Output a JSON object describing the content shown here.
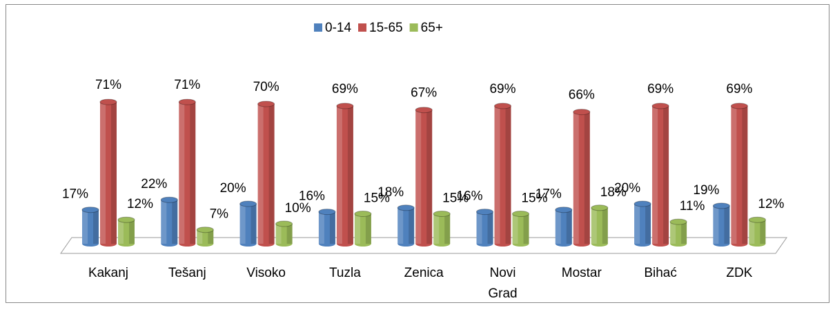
{
  "chart_data": {
    "type": "bar3d",
    "categories": [
      "Kakanj",
      "Tešanj",
      "Visoko",
      "Tuzla",
      "Zenica",
      "Novi Grad",
      "Mostar",
      "Bihać",
      "ZDK"
    ],
    "series": [
      {
        "name": "0-14",
        "color": "#4f81bd",
        "values": [
          17,
          22,
          20,
          16,
          18,
          16,
          17,
          20,
          19
        ],
        "value_labels": [
          "17%",
          "22%",
          "20%",
          "16%",
          "18%",
          "16%",
          "17%",
          "20%",
          "19%"
        ]
      },
      {
        "name": "15-65",
        "color": "#c0504d",
        "values": [
          71,
          71,
          70,
          69,
          67,
          69,
          66,
          69,
          69
        ],
        "value_labels": [
          "71%",
          "71%",
          "70%",
          "69%",
          "67%",
          "69%",
          "66%",
          "69%",
          "69%"
        ]
      },
      {
        "name": "65+",
        "color": "#9bbb59",
        "values": [
          12,
          7,
          10,
          15,
          15,
          15,
          18,
          11,
          12
        ],
        "value_labels": [
          "12%",
          "7%",
          "10%",
          "15%",
          "15%",
          "15%",
          "18%",
          "11%",
          "12%"
        ]
      }
    ],
    "legend": "top"
  }
}
